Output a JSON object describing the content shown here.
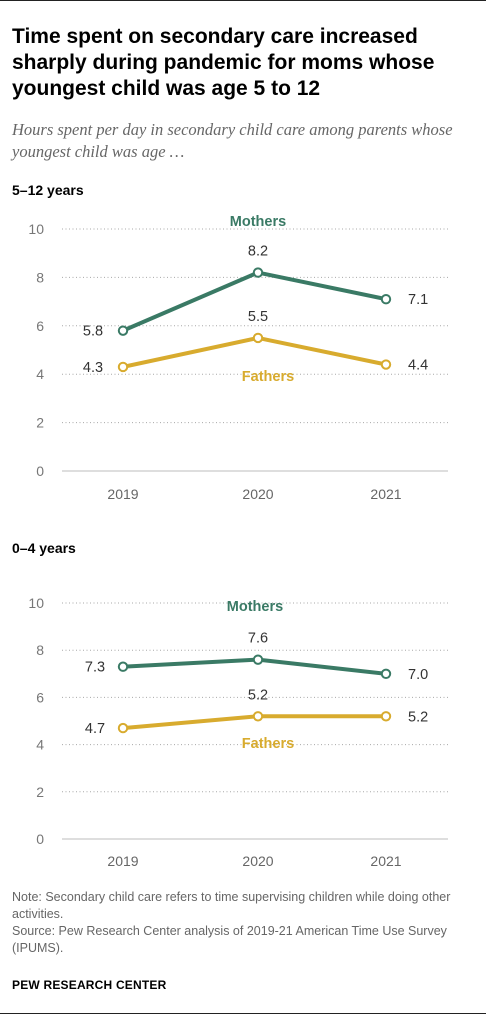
{
  "title": "Time spent on secondary care increased sharply during pandemic for moms whose youngest child was age 5 to 12",
  "subtitle": "Hours spent per day in secondary child care among parents whose youngest child was age …",
  "note": "Note: Secondary child care refers to time supervising children while doing other activities.",
  "source": "Source: Pew Research Center analysis of 2019-21 American Time Use Survey (IPUMS).",
  "brand": "PEW RESEARCH CENTER",
  "colors": {
    "mothers": "#3a7a65",
    "fathers": "#d8ab2e"
  },
  "chart_data": [
    {
      "type": "line",
      "title": "5–12 years",
      "x": [
        "2019",
        "2020",
        "2021"
      ],
      "ylim": [
        0,
        10
      ],
      "yticks": [
        0,
        2,
        4,
        6,
        8,
        10
      ],
      "grid": true,
      "series": [
        {
          "name": "Mothers",
          "values": [
            5.8,
            8.2,
            7.1
          ],
          "labels": [
            "5.8",
            "8.2",
            "7.1"
          ]
        },
        {
          "name": "Fathers",
          "values": [
            4.3,
            5.5,
            4.4
          ],
          "labels": [
            "4.3",
            "5.5",
            "4.4"
          ]
        }
      ]
    },
    {
      "type": "line",
      "title": "0–4 years",
      "x": [
        "2019",
        "2020",
        "2021"
      ],
      "ylim": [
        0,
        10
      ],
      "yticks": [
        0,
        2,
        4,
        6,
        8,
        10
      ],
      "grid": true,
      "series": [
        {
          "name": "Mothers",
          "values": [
            7.3,
            7.6,
            7.0
          ],
          "labels": [
            "7.3",
            "7.6",
            "7.0"
          ]
        },
        {
          "name": "Fathers",
          "values": [
            4.7,
            5.2,
            5.2
          ],
          "labels": [
            "4.7",
            "5.2",
            "5.2"
          ]
        }
      ]
    }
  ]
}
